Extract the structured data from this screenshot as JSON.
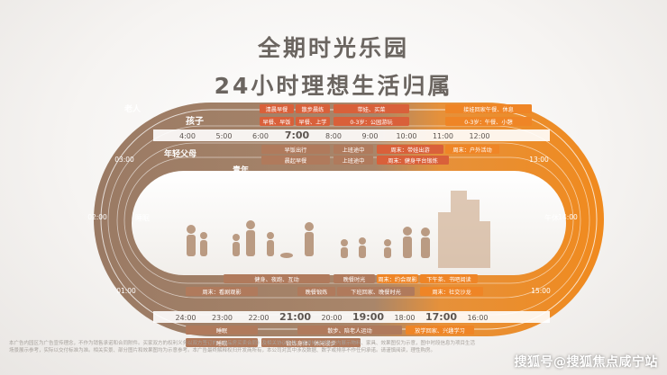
{
  "title_line1": "全期时光乐园",
  "title_line2": "24小时理想生活归属",
  "track_labels": {
    "elder": "老人",
    "child": "孩子",
    "young_parent": "年轻父母",
    "youth": "青年"
  },
  "top_times": [
    "4:00",
    "5:00",
    "6:00",
    "7:00",
    "8:00",
    "9:00",
    "10:00",
    "11:00",
    "12:00"
  ],
  "bottom_times": [
    "24:00",
    "23:00",
    "22:00",
    "21:00",
    "20:00",
    "19:00",
    "18:00",
    "17:00",
    "16:00"
  ],
  "left_times": [
    "03:00",
    "02:00",
    "01:00"
  ],
  "right_times": [
    "13:00",
    "14:00",
    "15:00"
  ],
  "top_row1": [
    "清晨早餐",
    "散步晨练",
    "带娃、买菜",
    "接娃回家午餐、休息"
  ],
  "top_row2": [
    "早餐、早饭",
    "早餐、上学",
    "0-3岁：公园游玩",
    "0-3岁：午餐、小憩"
  ],
  "top_row3": [
    "早饭出行",
    "上班途中",
    "周末：带娃出游",
    "周末：户外活动"
  ],
  "top_row4": [
    "晨起早餐",
    "上班途中",
    "周末：健身平台锻炼"
  ],
  "bottom_row1": [
    "健身、夜跑、互动",
    "晚餐时光",
    "周末：约会观影",
    "下午茶、书吧阅读"
  ],
  "bottom_row2": [
    "周末：看剧观影",
    "晚餐锻炼",
    "下班回家、晚餐时光",
    "周末：社交沙龙"
  ],
  "bottom_row3": [
    "睡眠",
    "散步、陪老人运动",
    "放学回家、兴趣学习"
  ],
  "bottom_row4": [
    "睡眠",
    "锻炼身体、休闲漫步"
  ],
  "side_labels": {
    "left": "睡眠",
    "right": "午休"
  },
  "disclaimer": "本广告内园区为广告宣传理念，不作为销售承诺和合同附件。买家双方的权利义务以双方签订的《商品房买卖合同》及相关协议为准。售楼处及样板区内展示物料、家具、效果图仅为示意，图中时段信息为项目生活场景展示参考，实际以交付标准为准。相关实景、部分图片和效果图均为示意参考。本广告最终解释权归开发商所有，本公司对其中涉及数据、数字或排序不作任何承诺。请谨慎阅读，理性购房。",
  "watermark": "搜狐号@搜狐焦点咸宁站",
  "colors": {
    "brown": "#9e7a5e",
    "orange": "#ee8a24",
    "title": "#6b6560"
  }
}
